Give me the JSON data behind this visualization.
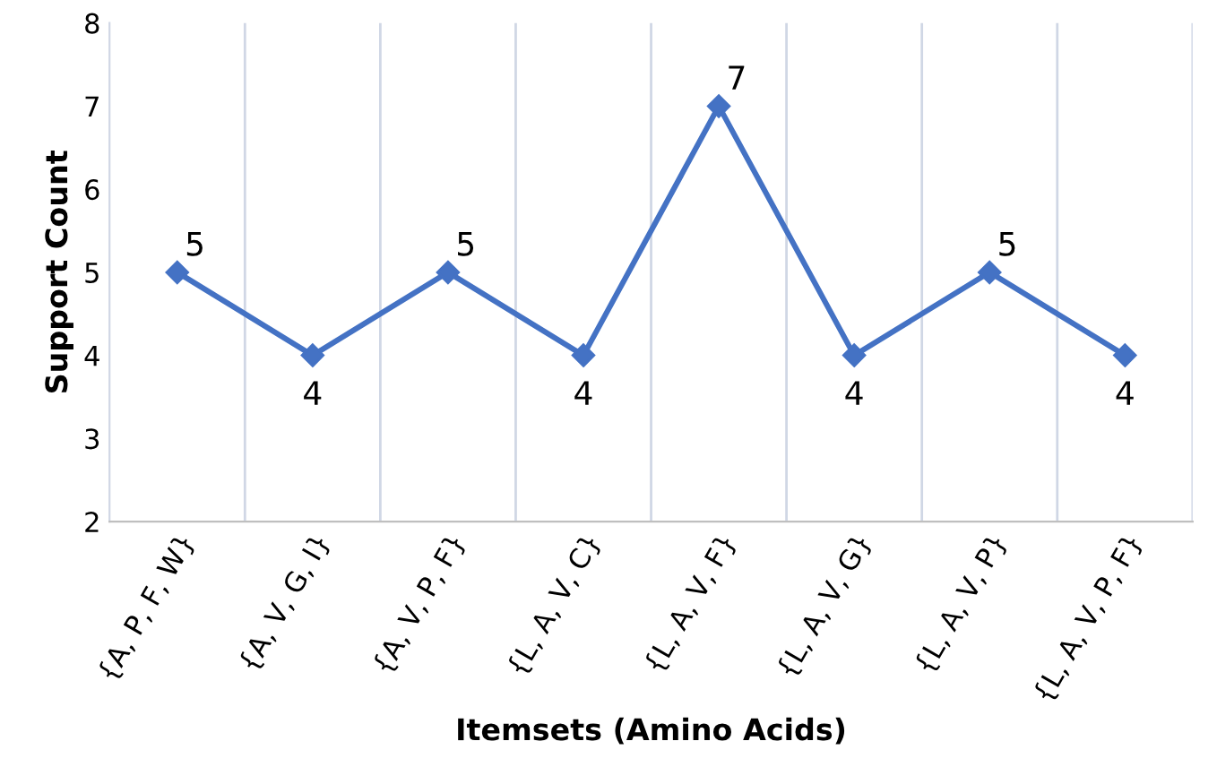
{
  "chart_data": {
    "type": "line",
    "xlabel": "Itemsets (Amino Acids)",
    "ylabel": "Support Count",
    "categories": [
      "{A, P, F, W}",
      "{A, V, G, I}",
      "{A, V, P, F}",
      "{L, A, V, C}",
      "{L, A, V, F}",
      "{L, A, V, G}",
      "{L, A, V, P}",
      "{L, A, V, P, F}"
    ],
    "series": [
      {
        "color": "#4472c4",
        "values": [
          5,
          4,
          5,
          4,
          7,
          4,
          5,
          4
        ]
      }
    ],
    "ylim": [
      2,
      8
    ],
    "yticks": [
      2,
      3,
      4,
      5,
      6,
      7,
      8
    ],
    "grid": "x",
    "marker": "diamond",
    "line_style": "solid",
    "data_labels": true,
    "legend": false
  }
}
